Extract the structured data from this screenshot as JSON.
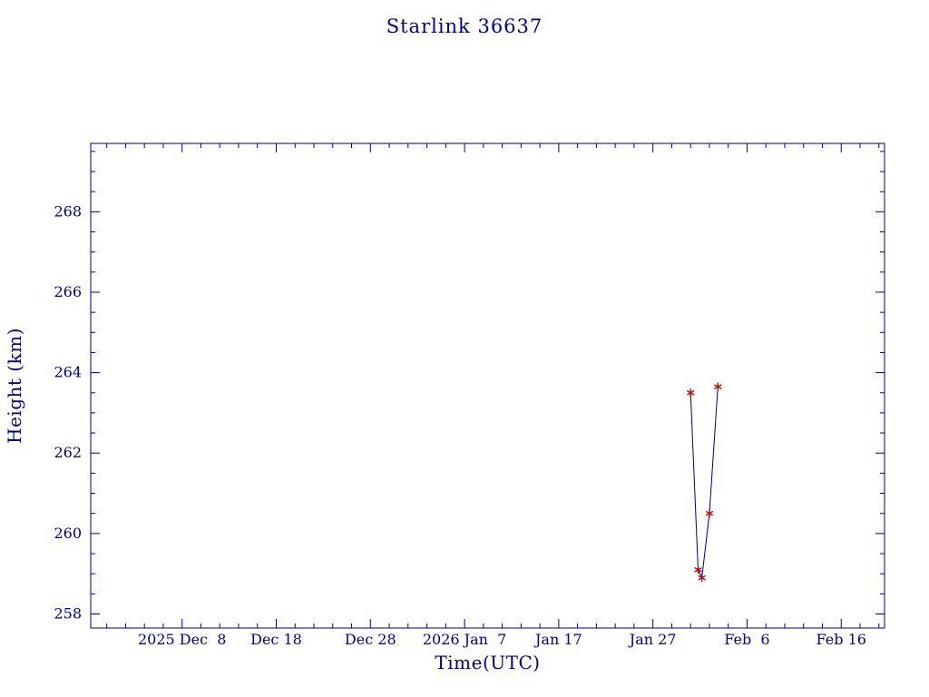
{
  "page": {
    "background_color": "#ffffff",
    "text_color": "#000080"
  },
  "chart_data": {
    "type": "line",
    "title": "Starlink 36637",
    "xlabel": "Time(UTC)",
    "ylabel": "Height (km)",
    "axis_color": "#000080",
    "line_color": "#000080",
    "marker": "asterisk",
    "marker_color": "#cc0000",
    "grid": false,
    "legend": "none",
    "x_units": "days relative to first labeled tick (2025 Dec 8)",
    "xlim": [
      -9.7,
      74.6
    ],
    "ylim": [
      257.65,
      269.7
    ],
    "x_ticks": [
      {
        "pos": 0,
        "label": "2025 Dec  8"
      },
      {
        "pos": 10,
        "label": "Dec 18"
      },
      {
        "pos": 20,
        "label": "Dec 28"
      },
      {
        "pos": 30,
        "label": "2026 Jan  7"
      },
      {
        "pos": 40,
        "label": "Jan 17"
      },
      {
        "pos": 50,
        "label": "Jan 27"
      },
      {
        "pos": 60,
        "label": "Feb  6"
      },
      {
        "pos": 70,
        "label": "Feb 16"
      }
    ],
    "x_minor_step": 2,
    "y_ticks": [
      258,
      260,
      262,
      264,
      266,
      268
    ],
    "y_minor_step": 0.5,
    "series": [
      {
        "name": "height_km",
        "x": [
          54.0,
          54.8,
          55.2,
          56.0,
          56.9
        ],
        "y": [
          263.5,
          259.1,
          258.9,
          260.5,
          263.65
        ]
      }
    ]
  }
}
